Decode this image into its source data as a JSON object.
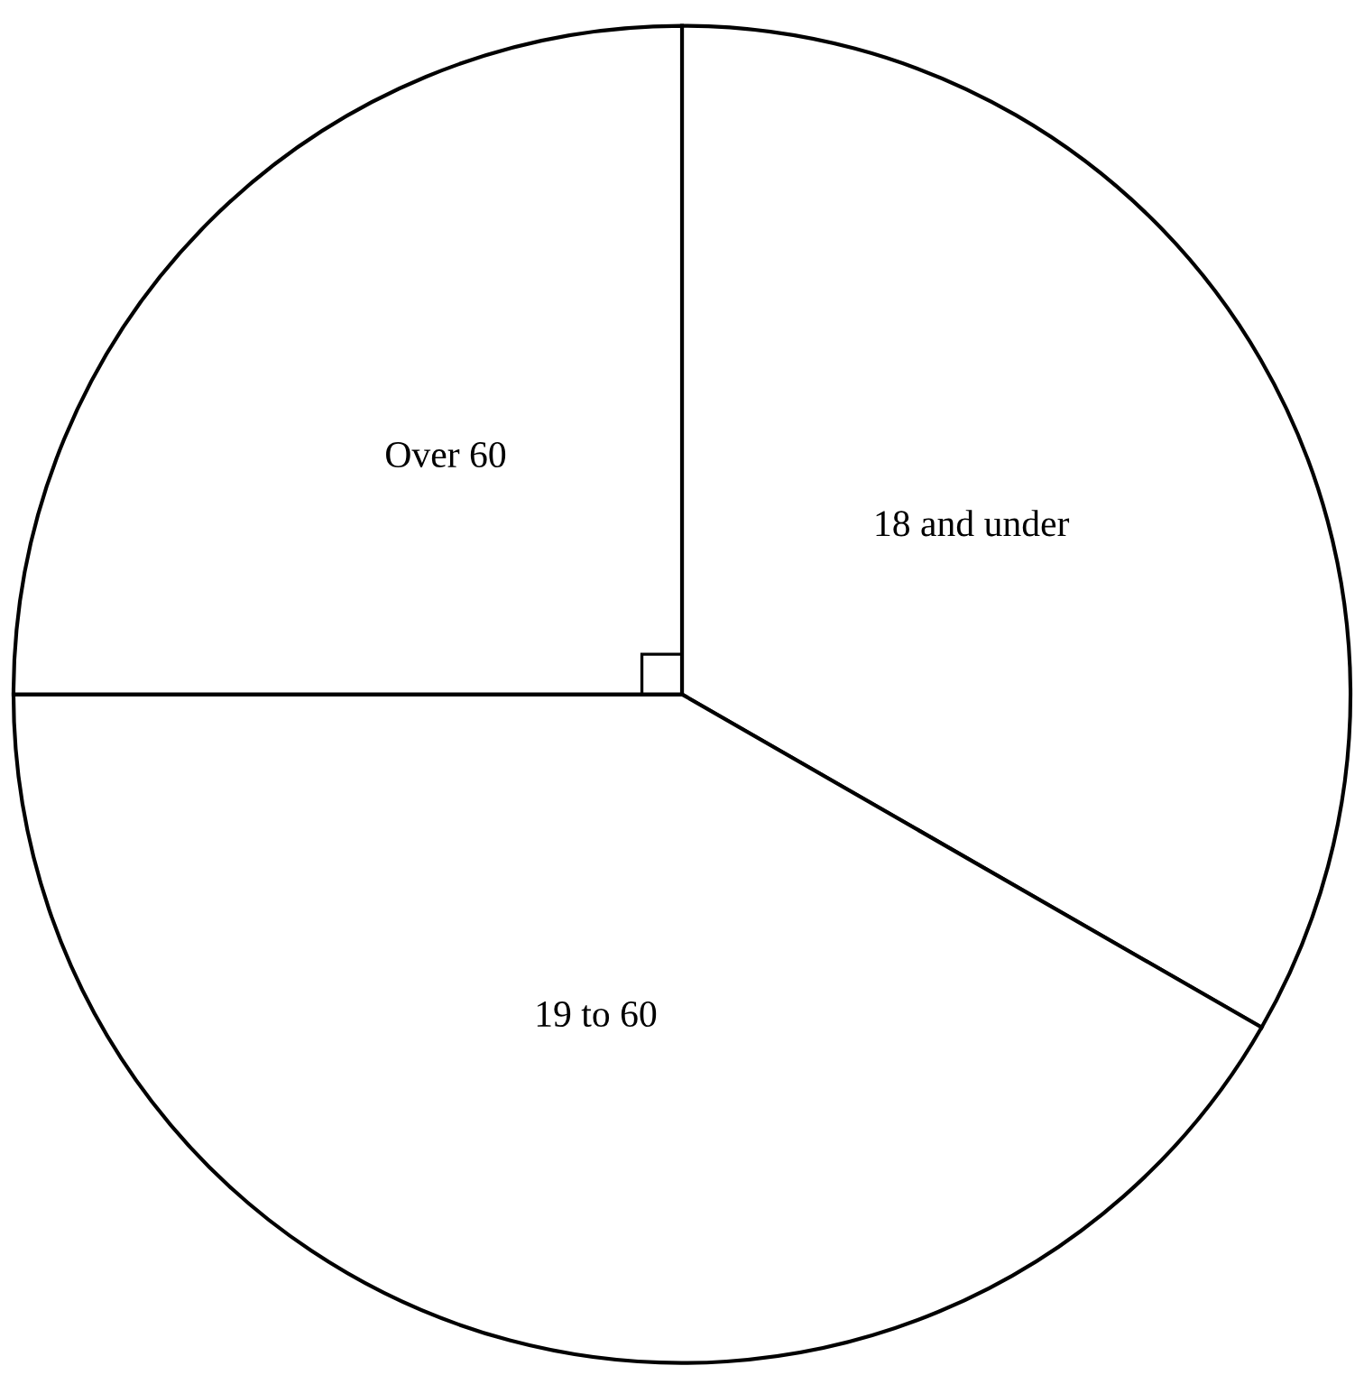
{
  "chart_data": {
    "type": "pie",
    "categories": [
      "18 and under",
      "19 to 60",
      "Over 60"
    ],
    "values": [
      33.3,
      41.7,
      25
    ],
    "colors": [
      "#ffffff",
      "#ffffff",
      "#ffffff"
    ]
  }
}
